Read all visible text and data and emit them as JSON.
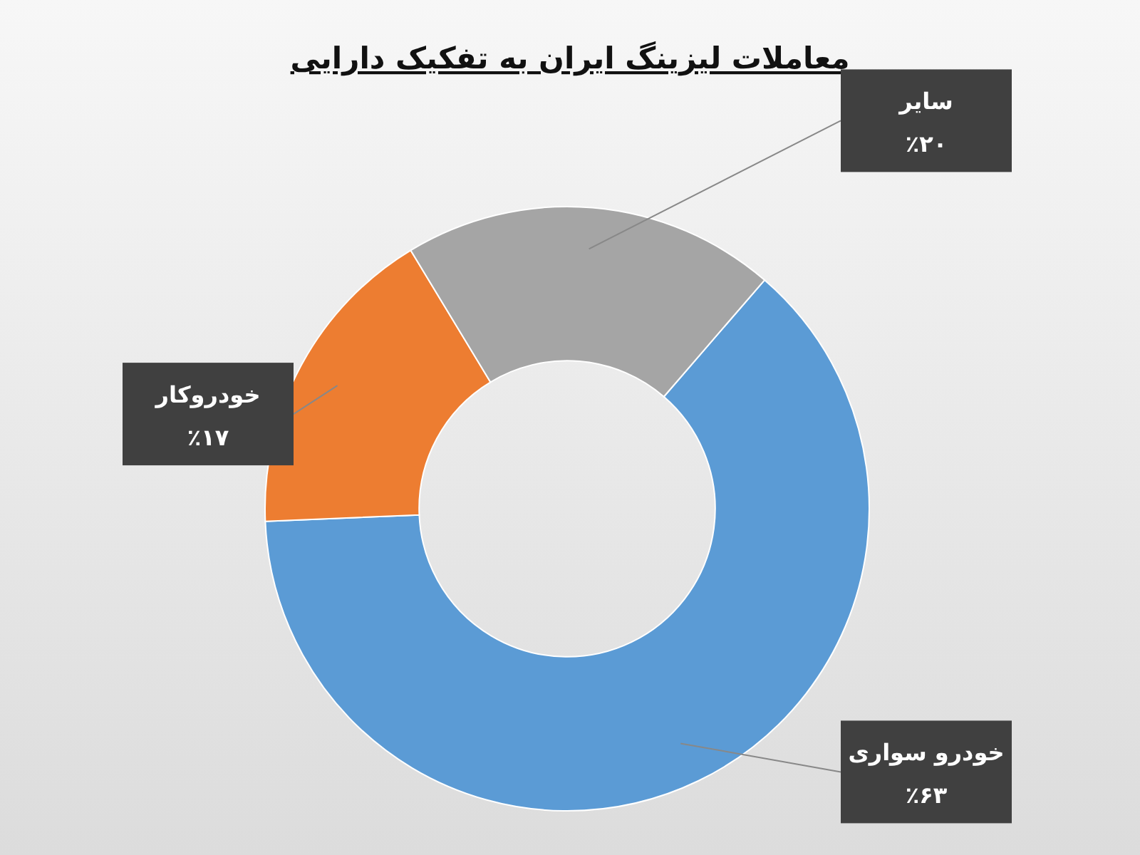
{
  "chart_data": {
    "type": "donut",
    "title": "معاملات لیزینگ ایران به تفکیک دارایی",
    "categories": [
      "خودرو سواری",
      "خودروکار",
      "سایر"
    ],
    "values": [
      63,
      17,
      20
    ],
    "colors": [
      "#5b9bd5",
      "#ed7d31",
      "#a5a5a5"
    ],
    "value_labels": [
      "٪۶۳",
      "٪۱۷",
      "٪۲۰"
    ]
  }
}
